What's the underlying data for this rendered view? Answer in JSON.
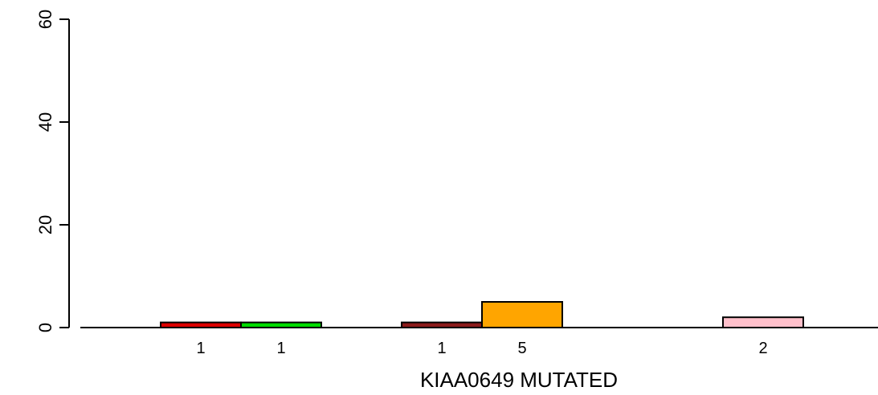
{
  "chart_data": {
    "type": "bar",
    "xlabel": "KIAA0649 MUTATED",
    "ylabel": "",
    "ylim": [
      0,
      60
    ],
    "yticks": [
      0,
      20,
      40,
      60
    ],
    "slots": 9,
    "bars": [
      {
        "slot": 1,
        "value": 1,
        "label": "1",
        "color": "#dc0000"
      },
      {
        "slot": 2,
        "value": 1,
        "label": "1",
        "color": "#00dc00"
      },
      {
        "slot": 4,
        "value": 1,
        "label": "1",
        "color": "#8b1a1a"
      },
      {
        "slot": 5,
        "value": 5,
        "label": "5",
        "color": "#ffa500"
      },
      {
        "slot": 8,
        "value": 2,
        "label": "2",
        "color": "#ffc0cb"
      }
    ],
    "grid": false,
    "legend": "none"
  }
}
